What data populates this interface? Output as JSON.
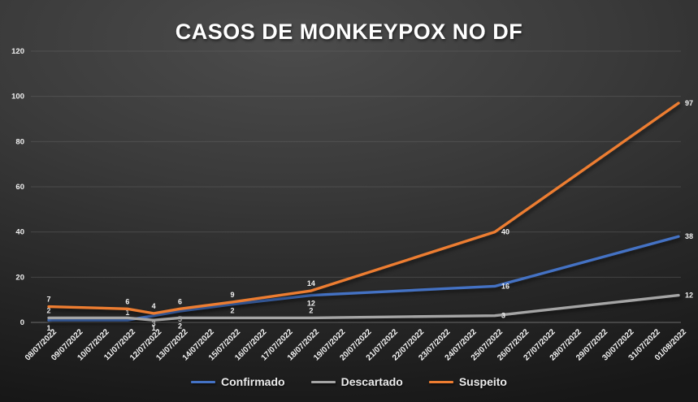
{
  "chart_data": {
    "type": "line",
    "title": "CASOS DE MONKEYPOX NO DF",
    "xlabel": "",
    "ylabel": "",
    "ylim": [
      0,
      120
    ],
    "yticks": [
      0,
      20,
      40,
      60,
      80,
      100,
      120
    ],
    "grid": true,
    "legend_position": "bottom",
    "categories": [
      "08/07/2022",
      "09/07/2022",
      "10/07/2022",
      "11/07/2022",
      "12/07/2022",
      "13/07/2022",
      "14/07/2022",
      "15/07/2022",
      "16/07/2022",
      "17/07/2022",
      "18/07/2022",
      "19/07/2022",
      "20/07/2022",
      "21/07/2022",
      "22/07/2022",
      "23/07/2022",
      "24/07/2022",
      "25/07/2022",
      "26/07/2022",
      "27/07/2022",
      "28/07/2022",
      "29/07/2022",
      "30/07/2022",
      "31/07/2022",
      "01/08/2022"
    ],
    "point_format": "[date, value, label_position] where a=above, b=below, r=right, null=label hidden",
    "series": [
      {
        "name": "Confirmado",
        "color": "#4472c4",
        "points": [
          [
            "08/07/2022",
            1,
            "b"
          ],
          [
            "11/07/2022",
            1,
            "a"
          ],
          [
            "12/07/2022",
            3,
            "b"
          ],
          [
            "13/07/2022",
            5,
            "b"
          ],
          [
            "15/07/2022",
            8,
            null
          ],
          [
            "18/07/2022",
            12,
            "b"
          ],
          [
            "25/07/2022",
            16,
            "r"
          ],
          [
            "01/08/2022",
            38,
            "r"
          ]
        ]
      },
      {
        "name": "Descartado",
        "color": "#a5a5a5",
        "points": [
          [
            "08/07/2022",
            2,
            "a"
          ],
          [
            "11/07/2022",
            2,
            null
          ],
          [
            "12/07/2022",
            1,
            "b"
          ],
          [
            "13/07/2022",
            2,
            "b"
          ],
          [
            "15/07/2022",
            2,
            "a"
          ],
          [
            "18/07/2022",
            2,
            "a"
          ],
          [
            "25/07/2022",
            3,
            "r"
          ],
          [
            "01/08/2022",
            12,
            "r"
          ]
        ]
      },
      {
        "name": "Suspeito",
        "color": "#ed7d31",
        "points": [
          [
            "08/07/2022",
            7,
            "a"
          ],
          [
            "11/07/2022",
            6,
            "a"
          ],
          [
            "12/07/2022",
            4,
            "a"
          ],
          [
            "13/07/2022",
            6,
            "a"
          ],
          [
            "15/07/2022",
            9,
            "a"
          ],
          [
            "18/07/2022",
            14,
            "a"
          ],
          [
            "25/07/2022",
            40,
            "r"
          ],
          [
            "01/08/2022",
            97,
            "r"
          ]
        ]
      }
    ]
  }
}
